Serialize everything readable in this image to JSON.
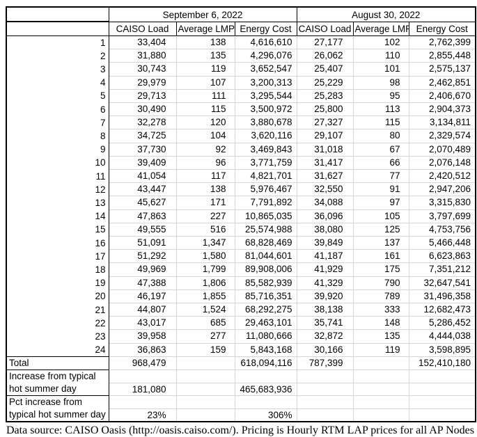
{
  "table": {
    "groups": [
      {
        "label": "September 6, 2022"
      },
      {
        "label": "August 30, 2022"
      }
    ],
    "columns": [
      "CAISO Load",
      "Average LMP",
      "Energy Cost"
    ],
    "rows": [
      {
        "hour": "1",
        "sep": [
          "33,404",
          "138",
          "4,616,610"
        ],
        "aug": [
          "27,177",
          "102",
          "2,762,399"
        ]
      },
      {
        "hour": "2",
        "sep": [
          "31,880",
          "135",
          "4,296,076"
        ],
        "aug": [
          "26,062",
          "110",
          "2,855,448"
        ]
      },
      {
        "hour": "3",
        "sep": [
          "30,743",
          "119",
          "3,652,547"
        ],
        "aug": [
          "25,407",
          "101",
          "2,575,137"
        ]
      },
      {
        "hour": "4",
        "sep": [
          "29,979",
          "107",
          "3,200,313"
        ],
        "aug": [
          "25,229",
          "98",
          "2,462,851"
        ]
      },
      {
        "hour": "5",
        "sep": [
          "29,713",
          "111",
          "3,295,544"
        ],
        "aug": [
          "25,283",
          "95",
          "2,406,670"
        ]
      },
      {
        "hour": "6",
        "sep": [
          "30,490",
          "115",
          "3,500,972"
        ],
        "aug": [
          "25,800",
          "113",
          "2,904,373"
        ]
      },
      {
        "hour": "7",
        "sep": [
          "32,278",
          "120",
          "3,880,678"
        ],
        "aug": [
          "27,327",
          "115",
          "3,134,811"
        ]
      },
      {
        "hour": "8",
        "sep": [
          "34,725",
          "104",
          "3,620,116"
        ],
        "aug": [
          "29,107",
          "80",
          "2,329,574"
        ]
      },
      {
        "hour": "9",
        "sep": [
          "37,730",
          "92",
          "3,469,843"
        ],
        "aug": [
          "31,018",
          "67",
          "2,070,489"
        ]
      },
      {
        "hour": "10",
        "sep": [
          "39,409",
          "96",
          "3,771,759"
        ],
        "aug": [
          "31,417",
          "66",
          "2,076,148"
        ]
      },
      {
        "hour": "11",
        "sep": [
          "41,054",
          "117",
          "4,821,701"
        ],
        "aug": [
          "31,627",
          "77",
          "2,420,512"
        ]
      },
      {
        "hour": "12",
        "sep": [
          "43,447",
          "138",
          "5,976,467"
        ],
        "aug": [
          "32,550",
          "91",
          "2,947,206"
        ]
      },
      {
        "hour": "13",
        "sep": [
          "45,627",
          "171",
          "7,791,892"
        ],
        "aug": [
          "34,088",
          "97",
          "3,315,830"
        ]
      },
      {
        "hour": "14",
        "sep": [
          "47,863",
          "227",
          "10,865,035"
        ],
        "aug": [
          "36,096",
          "105",
          "3,797,699"
        ]
      },
      {
        "hour": "15",
        "sep": [
          "49,555",
          "516",
          "25,574,988"
        ],
        "aug": [
          "38,080",
          "125",
          "4,753,756"
        ]
      },
      {
        "hour": "16",
        "sep": [
          "51,091",
          "1,347",
          "68,828,469"
        ],
        "aug": [
          "39,849",
          "137",
          "5,466,448"
        ]
      },
      {
        "hour": "17",
        "sep": [
          "51,292",
          "1,580",
          "81,044,601"
        ],
        "aug": [
          "41,187",
          "161",
          "6,623,863"
        ]
      },
      {
        "hour": "18",
        "sep": [
          "49,969",
          "1,799",
          "89,908,006"
        ],
        "aug": [
          "41,929",
          "175",
          "7,351,212"
        ]
      },
      {
        "hour": "19",
        "sep": [
          "47,388",
          "1,806",
          "85,582,939"
        ],
        "aug": [
          "41,329",
          "790",
          "32,647,541"
        ]
      },
      {
        "hour": "20",
        "sep": [
          "46,197",
          "1,855",
          "85,716,351"
        ],
        "aug": [
          "39,920",
          "789",
          "31,496,358"
        ]
      },
      {
        "hour": "21",
        "sep": [
          "44,807",
          "1,524",
          "68,292,275"
        ],
        "aug": [
          "38,138",
          "333",
          "12,682,473"
        ]
      },
      {
        "hour": "22",
        "sep": [
          "43,017",
          "685",
          "29,463,101"
        ],
        "aug": [
          "35,741",
          "148",
          "5,286,452"
        ]
      },
      {
        "hour": "23",
        "sep": [
          "39,958",
          "277",
          "11,080,666"
        ],
        "aug": [
          "32,872",
          "135",
          "4,444,038"
        ]
      },
      {
        "hour": "24",
        "sep": [
          "36,863",
          "159",
          "5,843,168"
        ],
        "aug": [
          "30,166",
          "119",
          "3,598,895"
        ]
      }
    ],
    "summary": [
      {
        "label": [
          "Total"
        ],
        "sep": [
          "968,479",
          "",
          "618,094,116"
        ],
        "aug": [
          "787,399",
          "",
          "152,410,180"
        ]
      },
      {
        "label": [
          "Increase from typical",
          "hot summer day"
        ],
        "sep": [
          "181,080",
          "",
          "465,683,936"
        ],
        "aug": [
          "",
          "",
          ""
        ]
      },
      {
        "label": [
          "Pct increase from",
          "typical hot summer day"
        ],
        "sep": [
          "23%",
          "",
          "306%"
        ],
        "aug": [
          "",
          "",
          ""
        ]
      }
    ]
  },
  "caption": "Data source: CAISO Oasis (http://oasis.caiso.com/). Pricing is Hourly RTM LAP prices for all AP Nodes"
}
